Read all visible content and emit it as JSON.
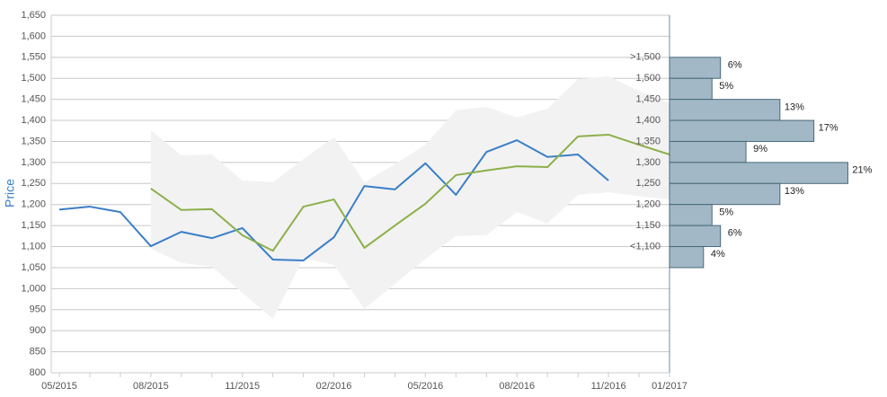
{
  "chart_data": [
    {
      "type": "line",
      "y_label": "Price",
      "ylim": [
        800,
        1650
      ],
      "yticks": [
        800,
        850,
        900,
        950,
        {
          "value": 1000,
          "label": "1,000"
        },
        {
          "value": 1050,
          "label": "1,050"
        },
        {
          "value": 1100,
          "label": "1,100"
        },
        {
          "value": 1150,
          "label": "1,150"
        },
        {
          "value": 1200,
          "label": "1,200"
        },
        {
          "value": 1250,
          "label": "1,250"
        },
        {
          "value": 1300,
          "label": "1,300"
        },
        {
          "value": 1350,
          "label": "1,350"
        },
        {
          "value": 1400,
          "label": "1,400"
        },
        {
          "value": 1450,
          "label": "1,450"
        },
        {
          "value": 1500,
          "label": "1,500"
        },
        {
          "value": 1550,
          "label": "1,550"
        },
        {
          "value": 1600,
          "label": "1,600"
        },
        {
          "value": 1650,
          "label": "1,650"
        }
      ],
      "grid": true,
      "categories": [
        "05/2015",
        null,
        null,
        "08/2015",
        null,
        null,
        "11/2015",
        null,
        null,
        "02/2016",
        null,
        null,
        "05/2016",
        null,
        null,
        "08/2016",
        null,
        null,
        "11/2016",
        null,
        "01/2017"
      ],
      "band": {
        "color": "#f2f2f2",
        "upper": [
          null,
          null,
          null,
          1377,
          1317,
          1319,
          1257,
          1253,
          1308,
          1360,
          1253,
          1296,
          1342,
          1424,
          1432,
          1407,
          1428,
          1498,
          1505,
          1470,
          1441
        ],
        "lower": [
          null,
          null,
          null,
          1095,
          1061,
          1052,
          990,
          928,
          1073,
          1056,
          952,
          1011,
          1071,
          1125,
          1127,
          1182,
          1155,
          1223,
          1229,
          1220,
          1212
        ]
      },
      "series": [
        {
          "color": "#3a7fc8",
          "values": [
            1188,
            1195,
            1182,
            1101,
            1135,
            1120,
            1144,
            1069,
            1067,
            1122,
            1244,
            1236,
            1298,
            1223,
            1325,
            1353,
            1313,
            1319,
            1257,
            null,
            null
          ]
        },
        {
          "color": "#8cb04a",
          "values": [
            null,
            null,
            null,
            1238,
            1187,
            1189,
            1127,
            1090,
            1195,
            1212,
            1097,
            1150,
            1202,
            1270,
            1281,
            1291,
            1289,
            1362,
            1366,
            1342,
            1319
          ]
        }
      ]
    },
    {
      "type": "hbar",
      "categories": [
        ">1,500",
        "1,500",
        "1,450",
        "1,400",
        "1,350",
        "1,300",
        "1,250",
        "1,200",
        "1,150",
        "<1,100"
      ],
      "values": [
        6,
        5,
        13,
        17,
        9,
        21,
        13,
        5,
        6,
        4
      ],
      "value_labels": [
        "6%",
        "5%",
        "13%",
        "17%",
        "9%",
        "21%",
        "13%",
        "5%",
        "6%",
        "4%"
      ],
      "color": "#a2b8c6"
    }
  ]
}
